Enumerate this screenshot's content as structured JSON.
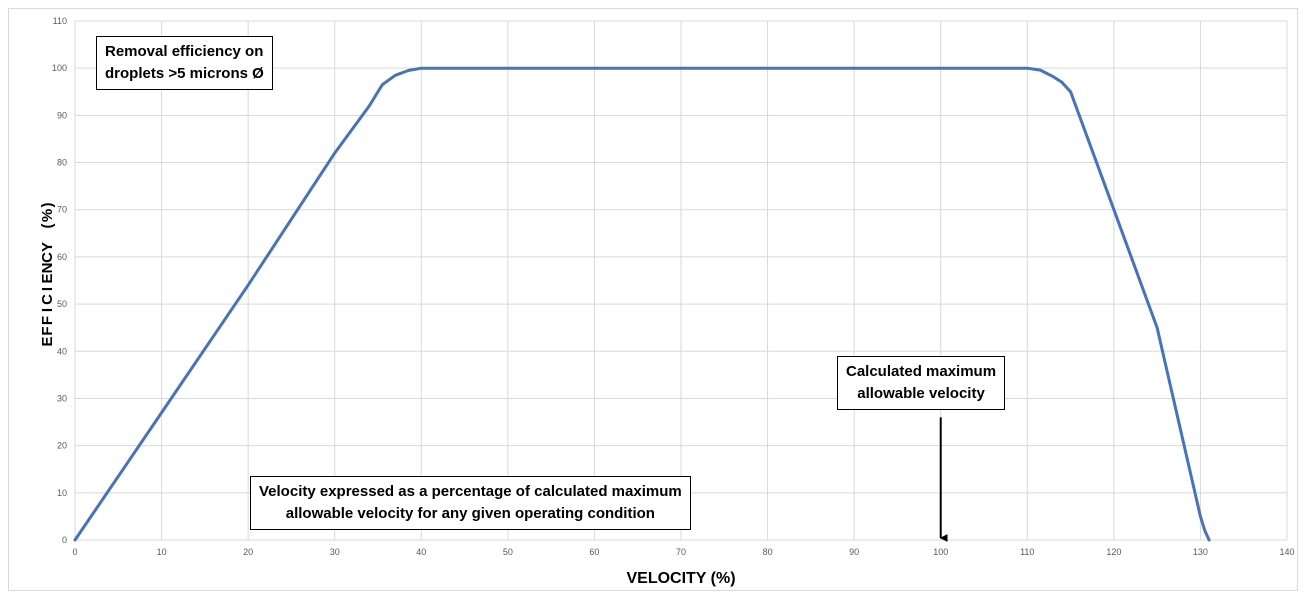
{
  "chart_data": {
    "type": "line",
    "title": "",
    "xlabel": "VELOCITY (%)",
    "ylabel": "EFFICIENCY (%)",
    "xlim": [
      0,
      140
    ],
    "ylim": [
      0,
      110
    ],
    "x_ticks": [
      "0",
      "10",
      "20",
      "30",
      "40",
      "50",
      "60",
      "70",
      "80",
      "90",
      "100",
      "110",
      "120",
      "130",
      "140"
    ],
    "y_ticks": [
      "0",
      "10",
      "20",
      "30",
      "40",
      "50",
      "60",
      "70",
      "80",
      "90",
      "100",
      "110"
    ],
    "grid": true,
    "legend": "none",
    "series": [
      {
        "color": "#4472c4",
        "x": [
          0,
          10,
          20,
          30,
          34,
          35.5,
          37,
          38.5,
          40,
          50,
          60,
          70,
          80,
          90,
          100,
          110,
          111.5,
          113,
          114,
          115,
          120,
          125,
          130,
          130.5,
          131
        ],
        "y": [
          0,
          27,
          54,
          82,
          92,
          96.5,
          98.5,
          99.5,
          100,
          100,
          100,
          100,
          100,
          100,
          100,
          100,
          99.6,
          98.2,
          97,
          95,
          70,
          45,
          5,
          2,
          0
        ]
      }
    ],
    "annotations": [
      {
        "lines": [
          "Removal efficiency on",
          "droplets >5 microns Ø"
        ]
      },
      {
        "lines": [
          "Calculated maximum",
          "allowable velocity"
        ]
      },
      {
        "lines": [
          "Velocity expressed as a percentage of calculated maximum",
          "allowable velocity for any given operating condition"
        ]
      }
    ],
    "arrow": {
      "x": 100,
      "y_from": 26,
      "y_to": 0
    }
  }
}
